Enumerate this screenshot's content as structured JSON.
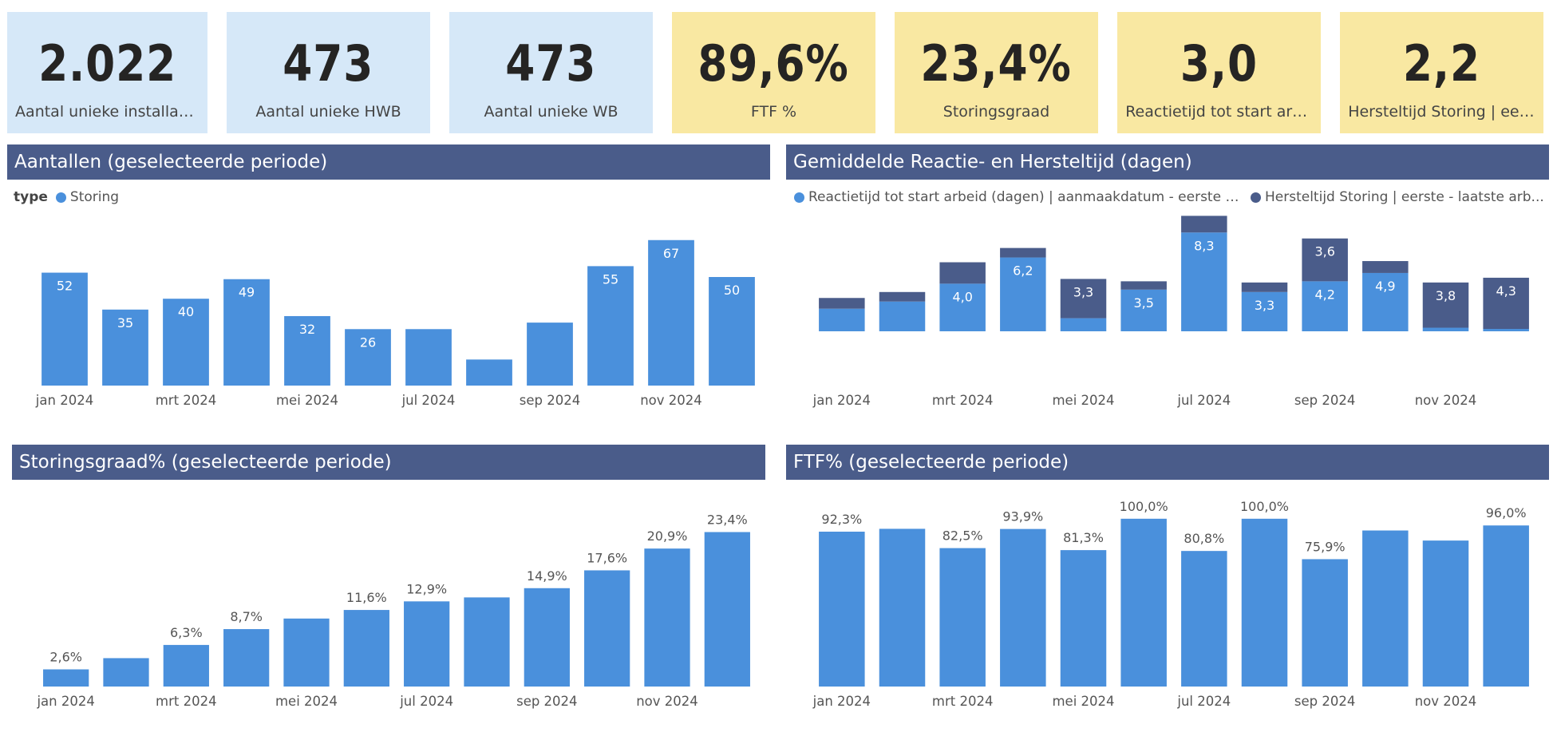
{
  "colors": {
    "bar_primary": "#4a90dc",
    "bar_secondary": "#4a5c8a",
    "kpi_blue": "#d6e8f8",
    "kpi_yellow": "#f9e8a2",
    "header": "#4a5c8a"
  },
  "kpis": [
    {
      "value": "2.022",
      "label": "Aantal unieke installaties"
    },
    {
      "value": "473",
      "label": "Aantal unieke HWB"
    },
    {
      "value": "473",
      "label": "Aantal unieke WB"
    },
    {
      "value": "89,6%",
      "label": "FTF %"
    },
    {
      "value": "23,4%",
      "label": "Storingsgraad"
    },
    {
      "value": "3,0",
      "label": "Reactietijd tot start arbei..."
    },
    {
      "value": "2,2",
      "label": "Hersteltijd Storing | eerst..."
    }
  ],
  "panels": {
    "aantallen": {
      "title": "Aantallen (geselecteerde periode)",
      "legend_title": "type",
      "legend_items": [
        "Storing"
      ]
    },
    "reactie": {
      "title": "Gemiddelde Reactie- en Hersteltijd (dagen)",
      "legend_items": [
        "Reactietijd tot start arbeid (dagen) | aanmaakdatum - eerste arbei...",
        "Hersteltijd Storing | eerste - laatste arb..."
      ]
    },
    "storingsgraad": {
      "title": "Storingsgraad% (geselecteerde periode)"
    },
    "ftf": {
      "title": "FTF% (geselecteerde periode)"
    }
  },
  "chart_data": [
    {
      "id": "aantallen",
      "type": "bar",
      "categories": [
        "jan 2024",
        "feb 2024",
        "mrt 2024",
        "apr 2024",
        "mei 2024",
        "jun 2024",
        "jul 2024",
        "aug 2024",
        "sep 2024",
        "okt 2024",
        "nov 2024",
        "dec 2024"
      ],
      "tick_labels": [
        "jan 2024",
        "",
        "mrt 2024",
        "",
        "mei 2024",
        "",
        "jul 2024",
        "",
        "sep 2024",
        "",
        "nov 2024",
        ""
      ],
      "series": [
        {
          "name": "Storing",
          "values": [
            52,
            35,
            40,
            49,
            32,
            26,
            26,
            12,
            29,
            55,
            67,
            50
          ]
        }
      ],
      "data_labels": [
        "52",
        "35",
        "40",
        "49",
        "32",
        "26",
        "",
        "",
        "",
        "55",
        "67",
        "50"
      ],
      "ylim": [
        0,
        75
      ]
    },
    {
      "id": "reactie",
      "type": "bar",
      "stacked": true,
      "categories": [
        "jan 2024",
        "feb 2024",
        "mrt 2024",
        "apr 2024",
        "mei 2024",
        "jun 2024",
        "jul 2024",
        "aug 2024",
        "sep 2024",
        "okt 2024",
        "nov 2024",
        "dec 2024"
      ],
      "tick_labels": [
        "jan 2024",
        "",
        "mrt 2024",
        "",
        "mei 2024",
        "",
        "jul 2024",
        "",
        "sep 2024",
        "",
        "nov 2024",
        ""
      ],
      "series": [
        {
          "name": "Reactietijd tot start arbeid (dagen) | aanmaakdatum - eerste arbei...",
          "values": [
            1.9,
            2.5,
            4.0,
            6.2,
            1.1,
            3.5,
            8.3,
            3.3,
            4.2,
            4.9,
            0.3,
            0.2
          ]
        },
        {
          "name": "Hersteltijd Storing | eerste - laatste arb...",
          "values": [
            0.9,
            0.8,
            1.8,
            0.8,
            3.3,
            0.7,
            1.4,
            0.8,
            3.6,
            1.0,
            3.8,
            4.3
          ]
        }
      ],
      "data_labels": [
        [
          "",
          "",
          "4,0",
          "6,2",
          "",
          "3,5",
          "8,3",
          "3,3",
          "4,2",
          "4,9",
          "",
          ""
        ],
        [
          "",
          "",
          "",
          "",
          "3,3",
          "",
          "",
          "",
          "3,6",
          "",
          "3,8",
          "4,3"
        ]
      ],
      "ylim": [
        0,
        11
      ]
    },
    {
      "id": "storingsgraad",
      "type": "bar",
      "categories": [
        "jan 2024",
        "feb 2024",
        "mrt 2024",
        "apr 2024",
        "mei 2024",
        "jun 2024",
        "jul 2024",
        "aug 2024",
        "sep 2024",
        "okt 2024",
        "nov 2024",
        "dec 2024"
      ],
      "tick_labels": [
        "jan 2024",
        "",
        "mrt 2024",
        "",
        "mei 2024",
        "",
        "jul 2024",
        "",
        "sep 2024",
        "",
        "nov 2024",
        ""
      ],
      "series": [
        {
          "values": [
            2.6,
            4.3,
            6.3,
            8.7,
            10.3,
            11.6,
            12.9,
            13.5,
            14.9,
            17.6,
            20.9,
            23.4
          ]
        }
      ],
      "data_labels": [
        "2,6%",
        "",
        "6,3%",
        "8,7%",
        "",
        "11,6%",
        "12,9%",
        "",
        "14,9%",
        "17,6%",
        "20,9%",
        "23,4%"
      ],
      "ylim": [
        0,
        26
      ]
    },
    {
      "id": "ftf",
      "type": "bar",
      "categories": [
        "jan 2024",
        "feb 2024",
        "mrt 2024",
        "apr 2024",
        "mei 2024",
        "jun 2024",
        "jul 2024",
        "aug 2024",
        "sep 2024",
        "okt 2024",
        "nov 2024",
        "dec 2024"
      ],
      "tick_labels": [
        "jan 2024",
        "",
        "mrt 2024",
        "",
        "mei 2024",
        "",
        "jul 2024",
        "",
        "sep 2024",
        "",
        "nov 2024",
        ""
      ],
      "series": [
        {
          "values": [
            92.3,
            94.0,
            82.5,
            93.9,
            81.3,
            100.0,
            80.8,
            100.0,
            75.9,
            93.0,
            87.0,
            96.0
          ]
        }
      ],
      "data_labels": [
        "92,3%",
        "",
        "82,5%",
        "93,9%",
        "81,3%",
        "100,0%",
        "80,8%",
        "100,0%",
        "75,9%",
        "",
        "",
        "96,0%"
      ],
      "ylim": [
        0,
        108
      ]
    }
  ]
}
